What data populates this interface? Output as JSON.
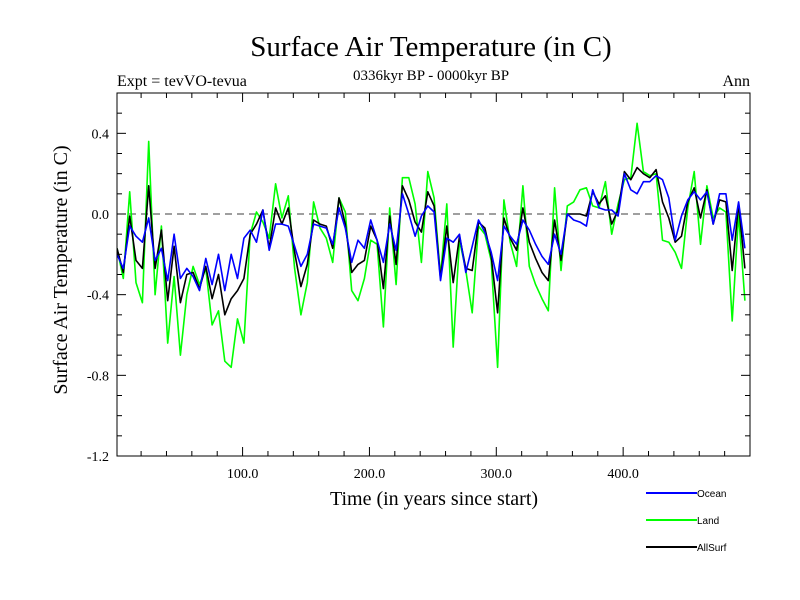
{
  "chart_data": {
    "type": "line",
    "title": "Surface Air Temperature (in C)",
    "subtitle": "0336kyr BP - 0000kyr BP",
    "expt_label": "Expt = tevVO-tevua",
    "season_label": "Ann",
    "xlabel": "Time (in years since start)",
    "ylabel": "Surface Air Temperature (in C)",
    "xlim": [
      1,
      500
    ],
    "ylim": [
      -1.2,
      0.6
    ],
    "x_ticks": [
      100,
      200,
      300,
      400
    ],
    "x_tick_labels": [
      "100.0",
      "200.0",
      "300.0",
      "400.0"
    ],
    "y_ticks": [
      -1.2,
      -0.8,
      -0.4,
      0.0,
      0.4
    ],
    "y_tick_labels": [
      "-1.2",
      "-0.8",
      "-0.4",
      "0.0",
      "0.4"
    ],
    "reference_line": 0.0,
    "x_start": 1,
    "x_step": 5,
    "series": [
      {
        "name": "Ocean",
        "color": "#0000ff",
        "values": [
          -0.2,
          -0.27,
          -0.06,
          -0.11,
          -0.14,
          -0.02,
          -0.23,
          -0.17,
          -0.33,
          -0.1,
          -0.32,
          -0.27,
          -0.31,
          -0.38,
          -0.22,
          -0.35,
          -0.2,
          -0.38,
          -0.2,
          -0.32,
          -0.12,
          -0.08,
          -0.14,
          0.02,
          -0.18,
          -0.05,
          -0.05,
          -0.06,
          -0.16,
          -0.26,
          -0.2,
          -0.05,
          -0.06,
          -0.07,
          -0.15,
          0.03,
          -0.07,
          -0.24,
          -0.13,
          -0.17,
          -0.03,
          -0.13,
          -0.24,
          -0.05,
          -0.18,
          0.1,
          0.0,
          -0.11,
          -0.01,
          0.04,
          0.01,
          -0.33,
          -0.12,
          -0.14,
          -0.1,
          -0.29,
          -0.16,
          -0.03,
          -0.09,
          -0.19,
          -0.33,
          -0.06,
          -0.11,
          -0.15,
          -0.03,
          -0.08,
          -0.15,
          -0.21,
          -0.25,
          -0.1,
          -0.2,
          0.0,
          -0.03,
          -0.04,
          -0.06,
          0.12,
          0.03,
          0.02,
          0.02,
          -0.01,
          0.2,
          0.12,
          0.1,
          0.16,
          0.16,
          0.19,
          0.17,
          0.08,
          -0.13,
          -0.01,
          0.07,
          0.11,
          0.07,
          0.11,
          -0.05,
          0.1,
          0.1,
          -0.13,
          0.06,
          -0.17
        ]
      },
      {
        "name": "Land",
        "color": "#00ff00",
        "values": [
          -0.17,
          -0.32,
          0.11,
          -0.34,
          -0.44,
          0.36,
          -0.4,
          -0.06,
          -0.64,
          -0.31,
          -0.7,
          -0.4,
          -0.26,
          -0.35,
          -0.27,
          -0.55,
          -0.48,
          -0.73,
          -0.76,
          -0.52,
          -0.64,
          -0.1,
          0.01,
          -0.04,
          -0.12,
          0.15,
          -0.02,
          0.09,
          -0.27,
          -0.5,
          -0.34,
          0.06,
          -0.07,
          -0.12,
          -0.24,
          0.08,
          0.01,
          -0.38,
          -0.43,
          -0.32,
          -0.13,
          -0.15,
          -0.56,
          0.03,
          -0.35,
          0.18,
          0.18,
          0.05,
          -0.24,
          0.21,
          0.08,
          -0.31,
          0.05,
          -0.66,
          -0.13,
          -0.28,
          -0.49,
          -0.06,
          -0.1,
          -0.23,
          -0.76,
          0.07,
          -0.14,
          -0.26,
          0.14,
          -0.26,
          -0.35,
          -0.42,
          -0.48,
          0.13,
          -0.28,
          0.04,
          0.06,
          0.12,
          0.13,
          0.04,
          0.03,
          0.16,
          -0.1,
          0.05,
          0.17,
          0.18,
          0.45,
          0.21,
          0.19,
          0.2,
          -0.13,
          -0.14,
          -0.19,
          -0.27,
          0.03,
          0.21,
          -0.15,
          0.14,
          -0.02,
          0.03,
          0.01,
          -0.53,
          0.0,
          -0.43
        ]
      },
      {
        "name": "AllSurf",
        "color": "#000000",
        "values": [
          -0.17,
          -0.29,
          -0.01,
          -0.23,
          -0.27,
          0.14,
          -0.27,
          -0.08,
          -0.43,
          -0.16,
          -0.44,
          -0.3,
          -0.29,
          -0.37,
          -0.26,
          -0.42,
          -0.3,
          -0.5,
          -0.42,
          -0.38,
          -0.32,
          -0.1,
          -0.05,
          0.02,
          -0.17,
          0.03,
          -0.05,
          0.03,
          -0.19,
          -0.36,
          -0.25,
          -0.03,
          -0.05,
          -0.06,
          -0.17,
          0.08,
          -0.05,
          -0.29,
          -0.25,
          -0.23,
          -0.06,
          -0.13,
          -0.37,
          -0.01,
          -0.25,
          0.14,
          0.07,
          -0.04,
          -0.09,
          0.11,
          0.04,
          -0.32,
          -0.06,
          -0.34,
          -0.11,
          -0.27,
          -0.28,
          -0.04,
          -0.07,
          -0.21,
          -0.49,
          -0.02,
          -0.12,
          -0.18,
          0.03,
          -0.14,
          -0.22,
          -0.29,
          -0.33,
          -0.03,
          -0.23,
          0.0,
          0.0,
          0.0,
          -0.01,
          0.11,
          0.05,
          0.09,
          -0.05,
          0.02,
          0.21,
          0.17,
          0.23,
          0.2,
          0.18,
          0.22,
          0.06,
          -0.02,
          -0.14,
          -0.11,
          0.06,
          0.13,
          -0.02,
          0.12,
          -0.05,
          0.07,
          0.06,
          -0.28,
          0.05,
          -0.27
        ]
      }
    ],
    "legend_position": "bottom-right"
  }
}
